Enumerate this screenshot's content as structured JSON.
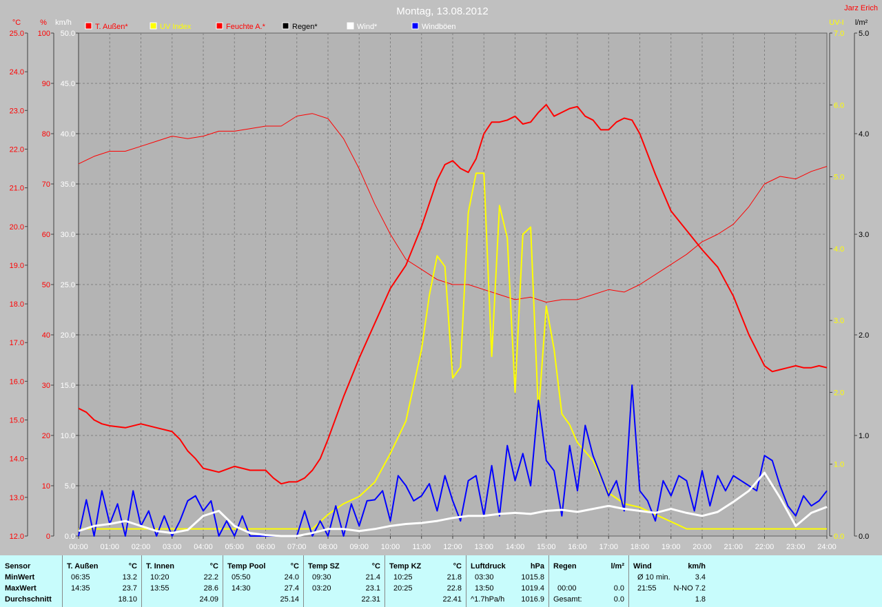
{
  "title": "Montag, 13.08.2012",
  "author": "Jarz Erich",
  "colors": {
    "bg": "#c0c0c0",
    "temp": "#ff0000",
    "humidity": "#ff0000",
    "uv": "#ffff00",
    "rain": "#000000",
    "wind": "#ffffff",
    "gust": "#0000ff",
    "grid": "#808080",
    "stats_bg": "#c8fcfc"
  },
  "legend": [
    {
      "label": "T. Außen*",
      "color": "#ff0000",
      "text_color": "#ff0000"
    },
    {
      "label": "UV Index",
      "color": "#ffff00",
      "text_color": "#ffff00"
    },
    {
      "label": "Feuchte A.*",
      "color": "#ff0000",
      "text_color": "#ff0000"
    },
    {
      "label": "Regen*",
      "color": "#000000",
      "text_color": "#000000"
    },
    {
      "label": "Wind*",
      "color": "#ffffff",
      "text_color": "#ffffff"
    },
    {
      "label": "Windböen",
      "color": "#0000ff",
      "text_color": "#ffffff"
    }
  ],
  "axes": {
    "temp": {
      "unit": "°C",
      "ticks": [
        "25.0",
        "24.0",
        "23.0",
        "22.0",
        "21.0",
        "20.0",
        "19.0",
        "18.0",
        "17.0",
        "16.0",
        "15.0",
        "14.0",
        "13.0",
        "12.0"
      ],
      "min": 12,
      "max": 25
    },
    "hum": {
      "unit": "%",
      "ticks": [
        "100",
        "90",
        "80",
        "70",
        "60",
        "50",
        "40",
        "30",
        "20",
        "10",
        "0"
      ],
      "min": 0,
      "max": 100
    },
    "wind": {
      "unit": "km/h",
      "ticks": [
        "50.0",
        "45.0",
        "40.0",
        "35.0",
        "30.0",
        "25.0",
        "20.0",
        "15.0",
        "10.0",
        "5.0",
        "0.0"
      ],
      "min": 0,
      "max": 50
    },
    "uv": {
      "unit": "UV-I",
      "ticks": [
        "7.0",
        "6.0",
        "5.0",
        "4.0",
        "3.0",
        "2.0",
        "1.0",
        "0.0"
      ],
      "min": 0,
      "max": 7
    },
    "rain": {
      "unit": "l/m²",
      "ticks": [
        "5.0",
        "4.0",
        "3.0",
        "2.0",
        "1.0",
        "0.0"
      ],
      "min": 0,
      "max": 5
    },
    "x": {
      "ticks": [
        "00:00",
        "01:00",
        "02:00",
        "03:00",
        "04:00",
        "05:00",
        "06:00",
        "07:00",
        "08:00",
        "09:00",
        "10:00",
        "11:00",
        "12:00",
        "13:00",
        "14:00",
        "15:00",
        "16:00",
        "17:00",
        "18:00",
        "19:00",
        "20:00",
        "21:00",
        "22:00",
        "23:00",
        "24:00"
      ]
    }
  },
  "chart_data": {
    "type": "line",
    "title": "Montag, 13.08.2012",
    "x_unit": "hours",
    "grid": true,
    "series": [
      {
        "name": "T. Außen*",
        "axis": "temp",
        "x": [
          0,
          0.25,
          0.5,
          0.75,
          1,
          1.5,
          2,
          2.5,
          3,
          3.25,
          3.5,
          3.75,
          4,
          4.25,
          4.5,
          5,
          5.5,
          6,
          6.25,
          6.5,
          6.75,
          7,
          7.25,
          7.5,
          7.75,
          8,
          8.5,
          9,
          9.5,
          10,
          10.5,
          11,
          11.25,
          11.5,
          11.75,
          12,
          12.25,
          12.5,
          12.75,
          13,
          13.25,
          13.5,
          13.75,
          14,
          14.25,
          14.5,
          14.75,
          15,
          15.25,
          15.5,
          15.75,
          16,
          16.25,
          16.5,
          16.75,
          17,
          17.25,
          17.5,
          17.75,
          18,
          18.5,
          19,
          19.5,
          20,
          20.5,
          21,
          21.5,
          22,
          22.25,
          22.5,
          22.75,
          23,
          23.25,
          23.5,
          23.75,
          24
        ],
        "y": [
          15.3,
          15.2,
          15.0,
          14.9,
          14.85,
          14.8,
          14.9,
          14.8,
          14.7,
          14.5,
          14.2,
          14.0,
          13.75,
          13.7,
          13.65,
          13.8,
          13.7,
          13.7,
          13.5,
          13.35,
          13.4,
          13.4,
          13.5,
          13.7,
          14.0,
          14.5,
          15.6,
          16.6,
          17.5,
          18.4,
          19.0,
          20.0,
          20.6,
          21.2,
          21.6,
          21.7,
          21.5,
          21.4,
          21.75,
          22.4,
          22.7,
          22.7,
          22.75,
          22.85,
          22.65,
          22.7,
          22.95,
          23.15,
          22.85,
          22.95,
          23.05,
          23.1,
          22.85,
          22.75,
          22.5,
          22.5,
          22.7,
          22.8,
          22.75,
          22.4,
          21.35,
          20.4,
          19.9,
          19.4,
          18.95,
          18.2,
          17.2,
          16.4,
          16.25,
          16.3,
          16.35,
          16.4,
          16.35,
          16.35,
          16.4,
          16.35
        ]
      },
      {
        "name": "Feuchte A.*",
        "axis": "hum",
        "x": [
          0,
          0.5,
          1,
          1.5,
          2,
          2.5,
          3,
          3.5,
          4,
          4.5,
          5,
          5.5,
          6,
          6.5,
          7,
          7.5,
          8,
          8.5,
          9,
          9.5,
          10,
          10.5,
          11,
          11.5,
          12,
          12.5,
          13,
          13.5,
          14,
          14.5,
          15,
          15.5,
          16,
          16.5,
          17,
          17.5,
          18,
          18.5,
          19,
          19.5,
          20,
          20.5,
          21,
          21.5,
          22,
          22.5,
          23,
          23.5,
          24
        ],
        "y": [
          74,
          75.5,
          76.5,
          76.5,
          77.5,
          78.5,
          79.5,
          79,
          79.5,
          80.5,
          80.5,
          81,
          81.5,
          81.5,
          83.5,
          84,
          83,
          79,
          73,
          66,
          60,
          55,
          53,
          51,
          50,
          50,
          49,
          48,
          47,
          47.5,
          46.5,
          47,
          47,
          48,
          49,
          48.5,
          50,
          52,
          54,
          56,
          58.5,
          60,
          62,
          65.5,
          70,
          71.5,
          71,
          72.5,
          73.5
        ]
      },
      {
        "name": "UV Index",
        "axis": "uv",
        "x": [
          0,
          7.5,
          8,
          8.5,
          9,
          9.5,
          10,
          10.5,
          11,
          11.25,
          11.5,
          11.75,
          12,
          12.25,
          12.5,
          12.75,
          13,
          13.25,
          13.5,
          13.75,
          14,
          14.25,
          14.5,
          14.75,
          15,
          15.25,
          15.5,
          15.75,
          16,
          16.5,
          17,
          17.5,
          18,
          18.5,
          19,
          19.5,
          20,
          24
        ],
        "y": [
          0.1,
          0.1,
          0.3,
          0.45,
          0.55,
          0.75,
          1.15,
          1.6,
          2.6,
          3.35,
          3.9,
          3.75,
          2.2,
          2.35,
          4.5,
          5.05,
          5.05,
          2.5,
          4.6,
          4.15,
          2.0,
          4.2,
          4.3,
          1.7,
          3.2,
          2.6,
          1.7,
          1.55,
          1.3,
          1.05,
          0.6,
          0.45,
          0.4,
          0.3,
          0.2,
          0.1,
          0.1,
          0.1
        ]
      },
      {
        "name": "Wind*",
        "axis": "wind",
        "x": [
          0,
          0.5,
          1,
          1.5,
          2,
          2.5,
          3,
          3.5,
          4,
          4.5,
          5,
          5.5,
          6,
          6.5,
          7,
          7.5,
          8,
          8.5,
          9,
          9.5,
          10,
          10.5,
          11,
          11.5,
          12,
          12.5,
          13,
          13.5,
          14,
          14.5,
          15,
          15.5,
          16,
          16.5,
          17,
          17.5,
          18,
          18.5,
          19,
          19.5,
          20,
          20.5,
          21,
          21.5,
          22,
          22.5,
          23,
          23.5,
          24
        ],
        "y": [
          0.5,
          1.0,
          1.2,
          1.5,
          1.0,
          0.5,
          0.3,
          0.6,
          2.0,
          2.5,
          1.0,
          0.3,
          0.1,
          0,
          0,
          0.3,
          0.7,
          0.7,
          0.5,
          0.7,
          1.0,
          1.2,
          1.3,
          1.5,
          1.8,
          2.0,
          2.0,
          2.2,
          2.3,
          2.2,
          2.5,
          2.6,
          2.4,
          2.7,
          3.0,
          2.7,
          2.5,
          2.3,
          2.7,
          2.3,
          2.0,
          2.4,
          3.4,
          4.5,
          6.3,
          3.8,
          1.0,
          2.3,
          2.9
        ]
      },
      {
        "name": "Windböen",
        "axis": "wind",
        "x": [
          0,
          0.25,
          0.5,
          0.75,
          1,
          1.25,
          1.5,
          1.75,
          2,
          2.25,
          2.5,
          2.75,
          3,
          3.25,
          3.5,
          3.75,
          4,
          4.25,
          4.5,
          4.75,
          5,
          5.25,
          5.5,
          5.75,
          6,
          6.25,
          6.5,
          6.75,
          7,
          7.25,
          7.5,
          7.75,
          8,
          8.25,
          8.5,
          8.75,
          9,
          9.25,
          9.5,
          9.75,
          10,
          10.25,
          10.5,
          10.75,
          11,
          11.25,
          11.5,
          11.75,
          12,
          12.25,
          12.5,
          12.75,
          13,
          13.25,
          13.5,
          13.75,
          14,
          14.25,
          14.5,
          14.75,
          15,
          15.25,
          15.5,
          15.75,
          16,
          16.25,
          16.5,
          16.75,
          17,
          17.25,
          17.5,
          17.75,
          18,
          18.25,
          18.5,
          18.75,
          19,
          19.25,
          19.5,
          19.75,
          20,
          20.25,
          20.5,
          20.75,
          21,
          21.25,
          21.5,
          21.75,
          22,
          22.25,
          22.5,
          22.75,
          23,
          23.25,
          23.5,
          23.75,
          24
        ],
        "y": [
          0,
          3.6,
          0,
          4.5,
          1.2,
          3.2,
          0,
          4.5,
          1.0,
          2.5,
          0,
          2.0,
          0,
          1.5,
          3.5,
          4.0,
          2.5,
          3.5,
          0,
          1.5,
          0,
          2.0,
          0,
          0,
          0,
          0,
          0,
          0,
          0,
          2.5,
          0,
          1.5,
          0,
          3.0,
          0,
          3.2,
          1.0,
          3.5,
          3.6,
          4.5,
          1.5,
          6.0,
          5.0,
          3.5,
          4.0,
          5.2,
          2.5,
          6.0,
          3.5,
          1.5,
          5.5,
          6.0,
          2.0,
          7.0,
          2.0,
          9.0,
          5.5,
          8.2,
          5.0,
          13.5,
          7.5,
          6.5,
          2.0,
          9.0,
          4.5,
          11.0,
          8.0,
          6.0,
          4.0,
          5.5,
          2.5,
          15.0,
          4.5,
          3.5,
          1.5,
          5.5,
          4.0,
          6.0,
          5.5,
          2.5,
          6.5,
          3.0,
          6.0,
          4.5,
          6.0,
          5.5,
          5.0,
          4.5,
          8.0,
          7.5,
          5.0,
          3.0,
          2.0,
          4.0,
          3.0,
          3.5,
          4.5
        ]
      }
    ]
  },
  "stats": {
    "row_labels": [
      "Sensor",
      "MinWert",
      "MaxWert",
      "Durchschnitt"
    ],
    "columns": [
      {
        "name": "T. Außen",
        "unit": "°C",
        "min_time": "06:35",
        "min": "13.2",
        "max_time": "14:35",
        "max": "23.7",
        "avg_pre": "",
        "avg": "18.10"
      },
      {
        "name": "T. Innen",
        "unit": "°C",
        "min_time": "10:20",
        "min": "22.2",
        "max_time": "13:55",
        "max": "28.6",
        "avg_pre": "",
        "avg": "24.09"
      },
      {
        "name": "Temp Pool",
        "unit": "°C",
        "min_time": "05:50",
        "min": "24.0",
        "max_time": "14:30",
        "max": "27.4",
        "avg_pre": "",
        "avg": "25.14"
      },
      {
        "name": "Temp SZ",
        "unit": "°C",
        "min_time": "09:30",
        "min": "21.4",
        "max_time": "03:20",
        "max": "23.1",
        "avg_pre": "",
        "avg": "22.31"
      },
      {
        "name": "Temp KZ",
        "unit": "°C",
        "min_time": "10:25",
        "min": "21.8",
        "max_time": "20:25",
        "max": "22.8",
        "avg_pre": "",
        "avg": "22.41"
      },
      {
        "name": "Luftdruck",
        "unit": "hPa",
        "min_time": "03:30",
        "min": "1015.8",
        "max_time": "13:50",
        "max": "1019.4",
        "avg_pre": "^1.7hPa/h",
        "avg": "1016.9"
      },
      {
        "name": "Regen",
        "unit": "l/m²",
        "min_time": "",
        "min": "",
        "max_time": "00:00",
        "max": "0.0",
        "avg_pre": "Gesamt:",
        "avg": "0.0"
      },
      {
        "name": "Wind",
        "unit": "km/h",
        "min_time": "Ø 10 min.",
        "min": "3.4",
        "max_time": "21:55",
        "max": "N-NO 7.2",
        "avg_pre": "",
        "avg": "1.8"
      }
    ]
  }
}
